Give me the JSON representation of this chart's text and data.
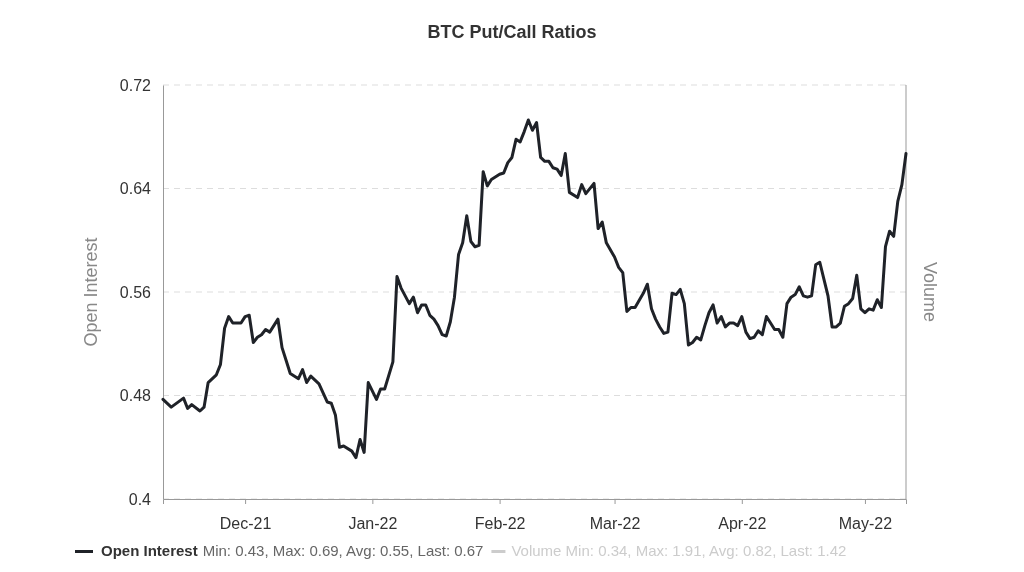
{
  "chart_data": {
    "type": "line",
    "title": "BTC Put/Call Ratios",
    "ylabel": "Open Interest",
    "y2label": "Volume",
    "x": [
      "2021-11-11",
      "2021-11-13",
      "2021-11-16",
      "2021-11-17",
      "2021-11-18",
      "2021-11-20",
      "2021-11-21",
      "2021-11-22",
      "2021-11-24",
      "2021-11-25",
      "2021-11-26",
      "2021-11-27",
      "2021-11-28",
      "2021-11-30",
      "2021-12-01",
      "2021-12-02",
      "2021-12-03",
      "2021-12-04",
      "2021-12-05",
      "2021-12-06",
      "2021-12-07",
      "2021-12-09",
      "2021-12-10",
      "2021-12-11",
      "2021-12-12",
      "2021-12-14",
      "2021-12-15",
      "2021-12-16",
      "2021-12-17",
      "2021-12-19",
      "2021-12-21",
      "2021-12-22",
      "2021-12-23",
      "2021-12-24",
      "2021-12-25",
      "2021-12-27",
      "2021-12-28",
      "2021-12-29",
      "2021-12-30",
      "2021-12-31",
      "2022-01-02",
      "2022-01-03",
      "2022-01-04",
      "2022-01-06",
      "2022-01-07",
      "2022-01-08",
      "2022-01-10",
      "2022-01-11",
      "2022-01-12",
      "2022-01-13",
      "2022-01-14",
      "2022-01-15",
      "2022-01-16",
      "2022-01-17",
      "2022-01-18",
      "2022-01-19",
      "2022-01-20",
      "2022-01-21",
      "2022-01-22",
      "2022-01-23",
      "2022-01-24",
      "2022-01-25",
      "2022-01-26",
      "2022-01-27",
      "2022-01-28",
      "2022-01-29",
      "2022-01-30",
      "2022-02-01",
      "2022-02-02",
      "2022-02-03",
      "2022-02-04",
      "2022-02-05",
      "2022-02-06",
      "2022-02-07",
      "2022-02-08",
      "2022-02-09",
      "2022-02-10",
      "2022-02-11",
      "2022-02-12",
      "2022-02-13",
      "2022-02-14",
      "2022-02-15",
      "2022-02-16",
      "2022-02-17",
      "2022-02-18",
      "2022-02-20",
      "2022-02-21",
      "2022-02-22",
      "2022-02-24",
      "2022-02-25",
      "2022-02-26",
      "2022-02-27",
      "2022-03-01",
      "2022-03-02",
      "2022-03-03",
      "2022-03-04",
      "2022-03-05",
      "2022-03-06",
      "2022-03-08",
      "2022-03-09",
      "2022-03-10",
      "2022-03-11",
      "2022-03-12",
      "2022-03-13",
      "2022-03-14",
      "2022-03-15",
      "2022-03-16",
      "2022-03-17",
      "2022-03-18",
      "2022-03-19",
      "2022-03-20",
      "2022-03-21",
      "2022-03-22",
      "2022-03-23",
      "2022-03-24",
      "2022-03-25",
      "2022-03-26",
      "2022-03-27",
      "2022-03-28",
      "2022-03-29",
      "2022-03-30",
      "2022-03-31",
      "2022-04-01",
      "2022-04-02",
      "2022-04-03",
      "2022-04-04",
      "2022-04-05",
      "2022-04-06",
      "2022-04-07",
      "2022-04-08",
      "2022-04-09",
      "2022-04-10",
      "2022-04-11",
      "2022-04-12",
      "2022-04-13",
      "2022-04-14",
      "2022-04-15",
      "2022-04-16",
      "2022-04-17",
      "2022-04-18",
      "2022-04-19",
      "2022-04-20",
      "2022-04-21",
      "2022-04-22",
      "2022-04-23",
      "2022-04-24",
      "2022-04-25",
      "2022-04-26",
      "2022-04-27",
      "2022-04-28",
      "2022-04-29",
      "2022-04-30",
      "2022-05-01",
      "2022-05-02",
      "2022-05-03",
      "2022-05-04",
      "2022-05-05",
      "2022-05-06",
      "2022-05-07",
      "2022-05-08",
      "2022-05-09",
      "2022-05-10",
      "2022-05-11"
    ],
    "series": [
      {
        "name": "Open Interest",
        "color": "#1f2228",
        "values": [
          0.477,
          0.471,
          0.478,
          0.47,
          0.473,
          0.468,
          0.471,
          0.49,
          0.496,
          0.504,
          0.532,
          0.541,
          0.536,
          0.536,
          0.541,
          0.542,
          0.521,
          0.525,
          0.527,
          0.531,
          0.529,
          0.539,
          0.517,
          0.507,
          0.497,
          0.493,
          0.5,
          0.49,
          0.495,
          0.489,
          0.475,
          0.474,
          0.465,
          0.44,
          0.441,
          0.437,
          0.432,
          0.446,
          0.436,
          0.49,
          0.477,
          0.485,
          0.485,
          0.506,
          0.572,
          0.563,
          0.551,
          0.556,
          0.544,
          0.55,
          0.55,
          0.542,
          0.539,
          0.534,
          0.527,
          0.526,
          0.537,
          0.556,
          0.589,
          0.598,
          0.619,
          0.599,
          0.595,
          0.596,
          0.653,
          0.642,
          0.647,
          0.651,
          0.652,
          0.66,
          0.664,
          0.678,
          0.676,
          0.684,
          0.693,
          0.685,
          0.691,
          0.664,
          0.661,
          0.661,
          0.656,
          0.655,
          0.65,
          0.667,
          0.637,
          0.633,
          0.643,
          0.636,
          0.644,
          0.609,
          0.614,
          0.598,
          0.587,
          0.579,
          0.575,
          0.545,
          0.548,
          0.548,
          0.559,
          0.566,
          0.547,
          0.539,
          0.533,
          0.528,
          0.529,
          0.559,
          0.558,
          0.562,
          0.551,
          0.519,
          0.521,
          0.525,
          0.523,
          0.534,
          0.544,
          0.55,
          0.536,
          0.541,
          0.533,
          0.536,
          0.536,
          0.534,
          0.541,
          0.529,
          0.524,
          0.525,
          0.53,
          0.527,
          0.541,
          0.536,
          0.531,
          0.531,
          0.525,
          0.551,
          0.556,
          0.558,
          0.564,
          0.557,
          0.556,
          0.557,
          0.581,
          0.583,
          0.57,
          0.557,
          0.533,
          0.533,
          0.536,
          0.549,
          0.551,
          0.555,
          0.573,
          0.547,
          0.544,
          0.547,
          0.546,
          0.554,
          0.548,
          0.595,
          0.607,
          0.603,
          0.63,
          0.643,
          0.667
        ]
      }
    ],
    "xlim": [
      "2021-11-11",
      "2022-05-11"
    ],
    "xticks": [
      {
        "value": "2021-12-01",
        "label": "Dec-21"
      },
      {
        "value": "2022-01-01",
        "label": "Jan-22"
      },
      {
        "value": "2022-02-01",
        "label": "Feb-22"
      },
      {
        "value": "2022-03-01",
        "label": "Mar-22"
      },
      {
        "value": "2022-04-01",
        "label": "Apr-22"
      },
      {
        "value": "2022-05-01",
        "label": "May-22"
      }
    ],
    "ylim": [
      0.4,
      0.72
    ],
    "yticks": [
      0.4,
      0.48,
      0.56,
      0.64,
      0.72
    ],
    "grid": "y",
    "legend": "bottom",
    "marker": "none",
    "line_style": "solid",
    "annotations": [
      "Min: 0.43, Max: 0.69, Avg: 0.55, Last: 0.67",
      "Volume Min: 0.34, Max: 1.91, Avg: 0.82, Last: 1.42"
    ]
  }
}
